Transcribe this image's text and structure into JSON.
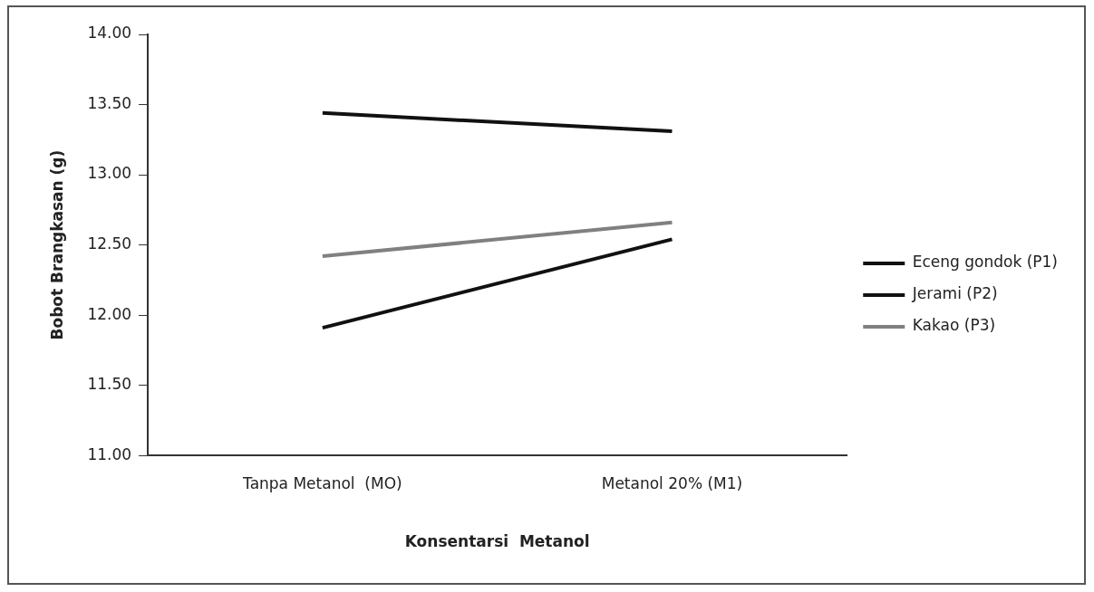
{
  "chart_data": {
    "type": "line",
    "xlabel": "Konsentarsi  Metanol",
    "ylabel": "Bobot Brangkasan (g)",
    "categories": [
      "Tanpa Metanol  (MO)",
      "Metanol 20% (M1)"
    ],
    "series": [
      {
        "name": "Eceng gondok (P1)",
        "color": "#111111",
        "values": [
          13.44,
          13.31
        ]
      },
      {
        "name": "Jerami (P2)",
        "color": "#111111",
        "values": [
          11.91,
          12.54
        ]
      },
      {
        "name": "Kakao (P3)",
        "color": "#808080",
        "values": [
          12.42,
          12.66
        ]
      }
    ],
    "ylim": [
      11,
      14
    ],
    "yticks": [
      {
        "value": 11,
        "label": "11.00"
      },
      {
        "value": 11.5,
        "label": "11.50"
      },
      {
        "value": 12,
        "label": "12.00"
      },
      {
        "value": 12.5,
        "label": "12.50"
      },
      {
        "value": 13,
        "label": "13.00"
      },
      {
        "value": 13.5,
        "label": "13.50"
      },
      {
        "value": 14,
        "label": "14.00"
      }
    ],
    "grid": false,
    "legend": "right",
    "marker": "none",
    "line_style": "solid"
  }
}
